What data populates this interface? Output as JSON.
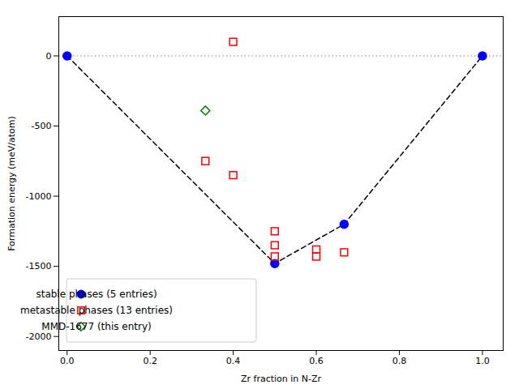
{
  "chart_data": {
    "type": "scatter",
    "xlabel": "Zr fraction in N-Zr",
    "ylabel": "Formation energy (meV/atom)",
    "xlim": [
      -0.02,
      1.05
    ],
    "ylim": [
      -2100,
      280
    ],
    "xticks": [
      {
        "value": 0.0,
        "label": "0.0"
      },
      0.2,
      0.4,
      0.6,
      0.8,
      {
        "value": 1.0,
        "label": "1.0"
      }
    ],
    "yticks": [
      0,
      -500,
      -1000,
      -1500,
      -2000
    ],
    "legend": "lower left",
    "series": [
      {
        "type": "rule",
        "values": [
          0
        ],
        "color": "gray",
        "line_style": "dotted"
      },
      {
        "type": "line",
        "x": [
          0.0,
          0.5,
          0.667,
          1.0
        ],
        "values": [
          0.0,
          -1480,
          -1200,
          0.0
        ],
        "color": "#000000",
        "line_style": "dashed"
      },
      {
        "type": "scatter",
        "name": "stable phases (5 entries)",
        "marker": "circle",
        "color": "#0000ff",
        "x": [
          0.0,
          0.5,
          0.667,
          1.0
        ],
        "values": [
          0.0,
          -1480,
          -1200,
          0.0
        ]
      },
      {
        "type": "scatter",
        "name": "metastable phases (13 entries)",
        "marker": "open_square",
        "color": "#ff0000",
        "x": [
          0.4,
          0.333,
          0.5,
          0.5,
          0.5,
          0.6,
          0.6,
          0.667,
          0.4
        ],
        "values": [
          100,
          -750,
          -1250,
          -1350,
          -1430,
          -1380,
          -1430,
          -1400,
          -850
        ]
      },
      {
        "type": "scatter",
        "name": "MMD-1677 (this entry)",
        "marker": "open_diamond",
        "color": "#008000",
        "x": [
          0.333
        ],
        "values": [
          -390
        ]
      }
    ]
  }
}
